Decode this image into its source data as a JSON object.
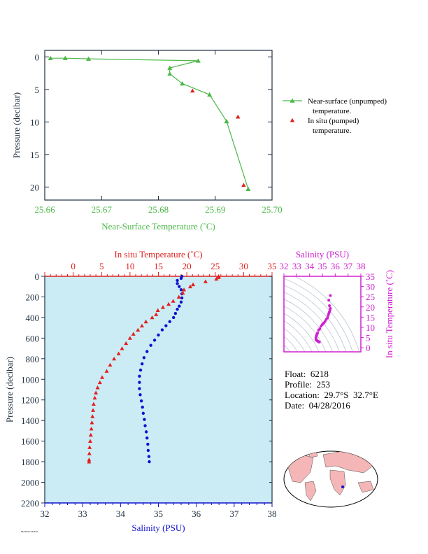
{
  "colors": {
    "green": "#4cb848",
    "red": "#e02020",
    "blue": "#1010d0",
    "magenta": "#d020d0",
    "axis_dark": "#203040",
    "panel_bg": "#ccecf5",
    "land": "#f4b6b6"
  },
  "info": {
    "float": "Float:  6218",
    "profile": "Profile:  253",
    "location": "Location:  29.7°S  32.7°E",
    "date": "Date:  04/28/2016"
  },
  "legend": {
    "near_surface": "Near-surface (unpumped)",
    "near_surface_2": "temperature.",
    "in_situ": "In situ (pumped)",
    "in_situ_2": "temperature."
  },
  "stamp": "P6218KX2 2016/05",
  "chart_data": [
    {
      "id": "near_surface",
      "type": "line",
      "xlabel": "Near-Surface Temperature (˚C)",
      "ylabel": "Pressure (decibar)",
      "xlim": [
        25.66,
        25.7
      ],
      "ylim": [
        22,
        -1
      ],
      "xticks": [
        "25.66",
        "25.67",
        "25.68",
        "25.69",
        "25.70"
      ],
      "yticks": [
        "0",
        "5",
        "10",
        "15",
        "20"
      ],
      "series": [
        {
          "name": "Near-surface (unpumped) temperature.",
          "style": "line-triangle",
          "color": "#4cb848",
          "points": [
            [
              25.661,
              0.2
            ],
            [
              25.6636,
              0.2
            ],
            [
              25.6677,
              0.3
            ],
            [
              25.687,
              0.6
            ],
            [
              25.682,
              1.7
            ],
            [
              25.682,
              2.6
            ],
            [
              25.6842,
              4.1
            ],
            [
              25.689,
              5.8
            ],
            [
              25.692,
              9.9
            ],
            [
              25.6958,
              20.3
            ]
          ]
        },
        {
          "name": "In situ (pumped) temperature.",
          "style": "triangle",
          "color": "#e02020",
          "points": [
            [
              25.686,
              5.2
            ],
            [
              25.694,
              9.2
            ],
            [
              25.695,
              19.7
            ]
          ]
        }
      ]
    },
    {
      "id": "profile",
      "type": "scatter",
      "title_top": "In situ Temperature (˚C)",
      "xlabel": "Salinity (PSU)",
      "ylabel": "Pressure (decibar)",
      "temp_lim": [
        -5,
        35
      ],
      "sal_lim": [
        32,
        38
      ],
      "ylim": [
        2200,
        0
      ],
      "temp_ticks": [
        "0",
        "5",
        "10",
        "15",
        "20",
        "25",
        "30",
        "35"
      ],
      "sal_ticks": [
        "32",
        "33",
        "34",
        "35",
        "36",
        "37",
        "38"
      ],
      "yticks": [
        "0",
        "200",
        "400",
        "600",
        "800",
        "1000",
        "1200",
        "1400",
        "1600",
        "1800",
        "2000",
        "2200"
      ],
      "temperature": [
        [
          25.6,
          0
        ],
        [
          25.6,
          10
        ],
        [
          25.2,
          25
        ],
        [
          23.3,
          50
        ],
        [
          21.1,
          80
        ],
        [
          20.6,
          100
        ],
        [
          19.5,
          130
        ],
        [
          19.3,
          160
        ],
        [
          18.6,
          200
        ],
        [
          17.6,
          240
        ],
        [
          16.8,
          270
        ],
        [
          15.8,
          300
        ],
        [
          14.9,
          330
        ],
        [
          14.6,
          370
        ],
        [
          13.9,
          400
        ],
        [
          12.8,
          440
        ],
        [
          12.1,
          480
        ],
        [
          11.4,
          520
        ],
        [
          10.6,
          560
        ],
        [
          10.0,
          600
        ],
        [
          9.3,
          650
        ],
        [
          8.6,
          700
        ],
        [
          8.0,
          750
        ],
        [
          7.2,
          800
        ],
        [
          6.5,
          860
        ],
        [
          5.9,
          920
        ],
        [
          5.1,
          980
        ],
        [
          4.7,
          1030
        ],
        [
          4.3,
          1080
        ],
        [
          4.0,
          1130
        ],
        [
          3.8,
          1180
        ],
        [
          3.6,
          1240
        ],
        [
          3.5,
          1300
        ],
        [
          3.4,
          1360
        ],
        [
          3.3,
          1420
        ],
        [
          3.2,
          1480
        ],
        [
          3.1,
          1540
        ],
        [
          3.0,
          1600
        ],
        [
          2.9,
          1660
        ],
        [
          2.85,
          1720
        ],
        [
          2.8,
          1780
        ],
        [
          2.8,
          1800
        ]
      ],
      "salinity": [
        [
          35.62,
          0
        ],
        [
          35.6,
          20
        ],
        [
          35.5,
          40
        ],
        [
          35.5,
          70
        ],
        [
          35.55,
          100
        ],
        [
          35.6,
          130
        ],
        [
          35.62,
          170
        ],
        [
          35.62,
          210
        ],
        [
          35.6,
          250
        ],
        [
          35.55,
          290
        ],
        [
          35.5,
          320
        ],
        [
          35.45,
          360
        ],
        [
          35.4,
          400
        ],
        [
          35.3,
          440
        ],
        [
          35.2,
          480
        ],
        [
          35.1,
          520
        ],
        [
          35.0,
          570
        ],
        [
          34.9,
          620
        ],
        [
          34.8,
          670
        ],
        [
          34.7,
          730
        ],
        [
          34.62,
          790
        ],
        [
          34.57,
          850
        ],
        [
          34.53,
          910
        ],
        [
          34.5,
          970
        ],
        [
          34.5,
          1030
        ],
        [
          34.5,
          1090
        ],
        [
          34.52,
          1150
        ],
        [
          34.55,
          1210
        ],
        [
          34.58,
          1270
        ],
        [
          34.6,
          1330
        ],
        [
          34.63,
          1390
        ],
        [
          34.65,
          1450
        ],
        [
          34.68,
          1510
        ],
        [
          34.7,
          1570
        ],
        [
          34.72,
          1630
        ],
        [
          34.73,
          1690
        ],
        [
          34.75,
          1750
        ],
        [
          34.76,
          1800
        ]
      ]
    },
    {
      "id": "ts_inset",
      "type": "scatter",
      "xlabel": "Salinity (PSU)",
      "ylabel": "In situ Temperature (˚C)",
      "xlim": [
        32,
        38
      ],
      "ylim": [
        -2,
        35
      ],
      "xticks": [
        "32",
        "33",
        "34",
        "35",
        "36",
        "37",
        "38"
      ],
      "yticks": [
        "0",
        "5",
        "10",
        "15",
        "20",
        "25",
        "30",
        "35"
      ],
      "points": [
        [
          35.62,
          25.6
        ],
        [
          35.5,
          23.3
        ],
        [
          35.55,
          20.6
        ],
        [
          35.62,
          19.3
        ],
        [
          35.6,
          18.6
        ],
        [
          35.55,
          17.6
        ],
        [
          35.5,
          16.8
        ],
        [
          35.45,
          15.8
        ],
        [
          35.4,
          14.6
        ],
        [
          35.3,
          13.9
        ],
        [
          35.2,
          12.8
        ],
        [
          35.1,
          12.1
        ],
        [
          35.0,
          11.4
        ],
        [
          34.9,
          10.6
        ],
        [
          34.8,
          9.3
        ],
        [
          34.7,
          8.6
        ],
        [
          34.62,
          7.2
        ],
        [
          34.57,
          6.5
        ],
        [
          34.53,
          5.9
        ],
        [
          34.5,
          5.1
        ],
        [
          34.5,
          4.3
        ],
        [
          34.52,
          3.8
        ],
        [
          34.55,
          3.6
        ],
        [
          34.6,
          3.4
        ],
        [
          34.65,
          3.2
        ],
        [
          34.7,
          3.0
        ],
        [
          34.73,
          2.85
        ],
        [
          34.76,
          2.8
        ]
      ]
    }
  ]
}
